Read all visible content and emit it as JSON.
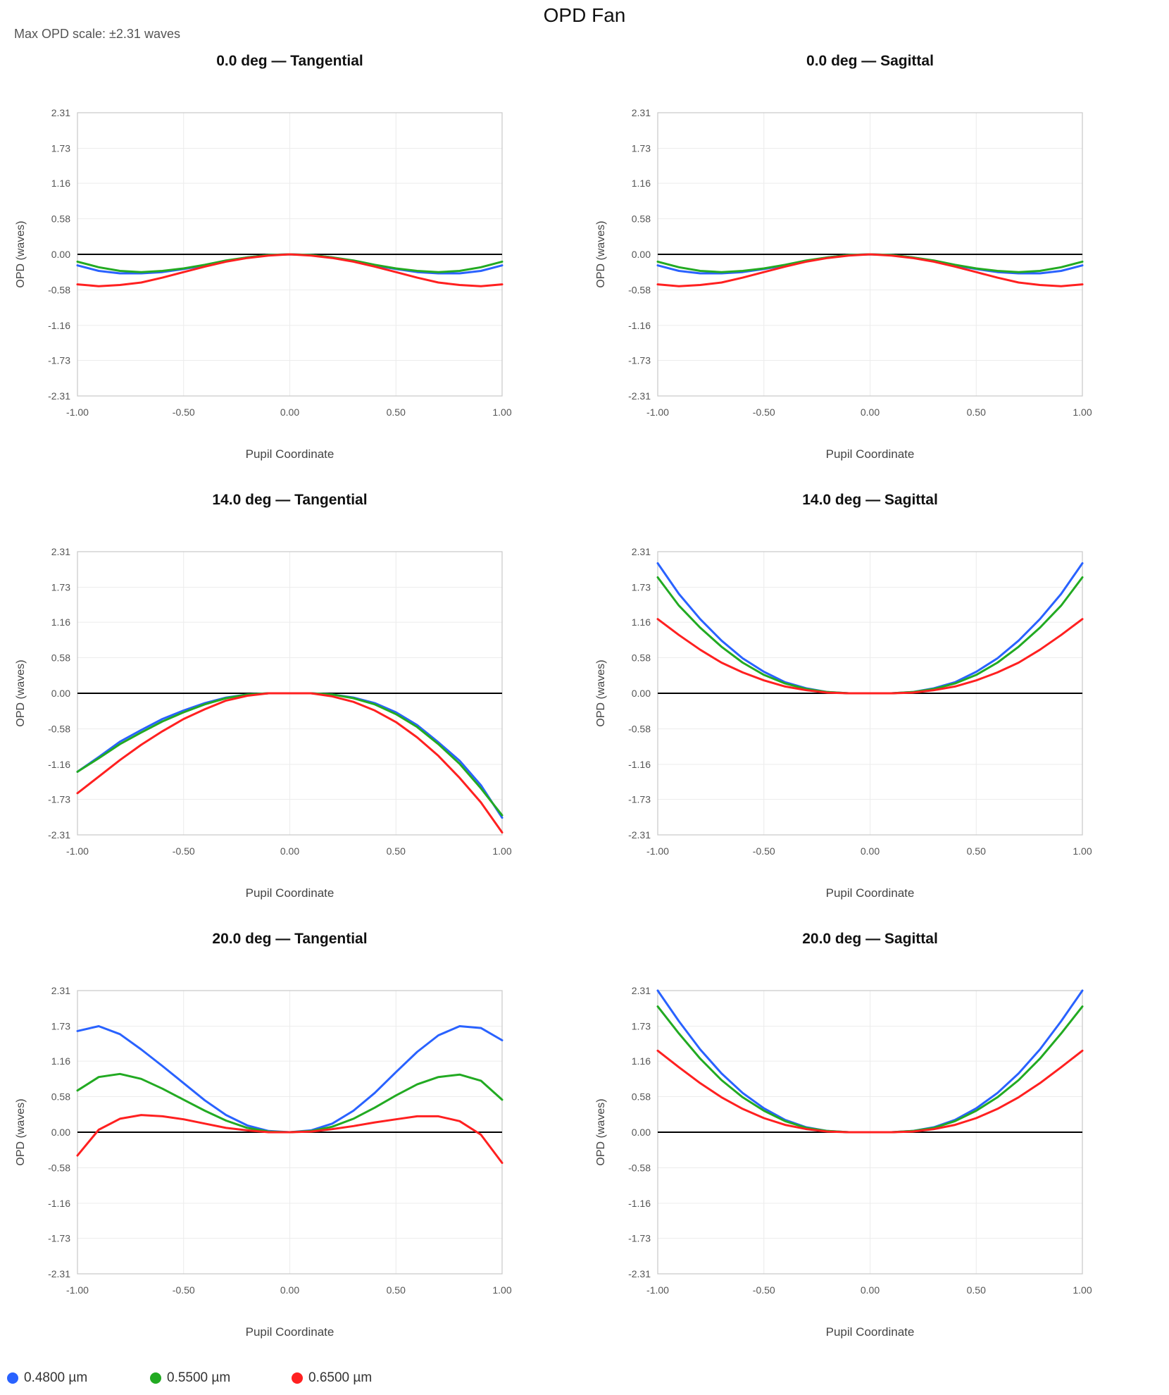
{
  "page": {
    "title": "OPD Fan",
    "scale_note": "Max OPD scale: ±2.31 waves"
  },
  "legend": [
    {
      "label": "0.4800 µm",
      "color": "#2962ff"
    },
    {
      "label": "0.5500 µm",
      "color": "#22aa22"
    },
    {
      "label": "0.6500 µm",
      "color": "#ff2020"
    }
  ],
  "axis": {
    "xlabel": "Pupil Coordinate",
    "ylabel": "OPD (waves)",
    "x_ticks": [
      "-1.00",
      "-0.50",
      "0.00",
      "0.50",
      "1.00"
    ],
    "y_ticks": [
      "2.31",
      "1.73",
      "1.16",
      "0.58",
      "0.00",
      "-0.58",
      "-1.16",
      "-1.73",
      "-2.31"
    ],
    "xlim": [
      -1,
      1
    ],
    "ylim": [
      -2.31,
      2.31
    ],
    "grid": true
  },
  "chart_data": [
    {
      "type": "line",
      "title": "0.0 deg — Tangential",
      "x": [
        -1.0,
        -0.9,
        -0.8,
        -0.7,
        -0.6,
        -0.5,
        -0.4,
        -0.3,
        -0.2,
        -0.1,
        0.0,
        0.1,
        0.2,
        0.3,
        0.4,
        0.5,
        0.6,
        0.7,
        0.8,
        0.9,
        1.0
      ],
      "series": [
        {
          "name": "0.4800 µm",
          "values": [
            -0.18,
            -0.27,
            -0.31,
            -0.31,
            -0.29,
            -0.24,
            -0.18,
            -0.11,
            -0.05,
            -0.01,
            0.0,
            -0.01,
            -0.05,
            -0.11,
            -0.18,
            -0.24,
            -0.29,
            -0.31,
            -0.31,
            -0.27,
            -0.18
          ]
        },
        {
          "name": "0.5500 µm",
          "values": [
            -0.12,
            -0.21,
            -0.27,
            -0.29,
            -0.27,
            -0.23,
            -0.17,
            -0.1,
            -0.05,
            -0.01,
            0.0,
            -0.01,
            -0.05,
            -0.1,
            -0.17,
            -0.23,
            -0.27,
            -0.29,
            -0.27,
            -0.21,
            -0.12
          ]
        },
        {
          "name": "0.6500 µm",
          "values": [
            -0.49,
            -0.52,
            -0.5,
            -0.46,
            -0.38,
            -0.29,
            -0.2,
            -0.12,
            -0.06,
            -0.02,
            0.0,
            -0.02,
            -0.06,
            -0.12,
            -0.2,
            -0.29,
            -0.38,
            -0.46,
            -0.5,
            -0.52,
            -0.49
          ]
        }
      ]
    },
    {
      "type": "line",
      "title": "0.0 deg — Sagittal",
      "x": [
        -1.0,
        -0.9,
        -0.8,
        -0.7,
        -0.6,
        -0.5,
        -0.4,
        -0.3,
        -0.2,
        -0.1,
        0.0,
        0.1,
        0.2,
        0.3,
        0.4,
        0.5,
        0.6,
        0.7,
        0.8,
        0.9,
        1.0
      ],
      "series": [
        {
          "name": "0.4800 µm",
          "values": [
            -0.18,
            -0.27,
            -0.31,
            -0.31,
            -0.29,
            -0.24,
            -0.18,
            -0.11,
            -0.05,
            -0.01,
            0.0,
            -0.01,
            -0.05,
            -0.11,
            -0.18,
            -0.24,
            -0.29,
            -0.31,
            -0.31,
            -0.27,
            -0.18
          ]
        },
        {
          "name": "0.5500 µm",
          "values": [
            -0.12,
            -0.21,
            -0.27,
            -0.29,
            -0.27,
            -0.23,
            -0.17,
            -0.1,
            -0.05,
            -0.01,
            0.0,
            -0.01,
            -0.05,
            -0.1,
            -0.17,
            -0.23,
            -0.27,
            -0.29,
            -0.27,
            -0.21,
            -0.12
          ]
        },
        {
          "name": "0.6500 µm",
          "values": [
            -0.49,
            -0.52,
            -0.5,
            -0.46,
            -0.38,
            -0.29,
            -0.2,
            -0.12,
            -0.06,
            -0.02,
            0.0,
            -0.02,
            -0.06,
            -0.12,
            -0.2,
            -0.29,
            -0.38,
            -0.46,
            -0.5,
            -0.52,
            -0.49
          ]
        }
      ]
    },
    {
      "type": "line",
      "title": "14.0 deg — Tangential",
      "x": [
        -1.0,
        -0.9,
        -0.8,
        -0.7,
        -0.6,
        -0.5,
        -0.4,
        -0.3,
        -0.2,
        -0.1,
        0.0,
        0.1,
        0.2,
        0.3,
        0.4,
        0.5,
        0.6,
        0.7,
        0.8,
        0.9,
        1.0
      ],
      "series": [
        {
          "name": "0.4800 µm",
          "values": [
            -1.28,
            -1.04,
            -0.79,
            -0.6,
            -0.42,
            -0.28,
            -0.16,
            -0.07,
            -0.02,
            0.0,
            0.0,
            0.0,
            -0.02,
            -0.07,
            -0.16,
            -0.31,
            -0.52,
            -0.8,
            -1.1,
            -1.5,
            -2.03
          ]
        },
        {
          "name": "0.5500 µm",
          "values": [
            -1.28,
            -1.06,
            -0.83,
            -0.64,
            -0.46,
            -0.31,
            -0.18,
            -0.08,
            -0.02,
            0.0,
            0.0,
            0.0,
            -0.02,
            -0.08,
            -0.18,
            -0.34,
            -0.55,
            -0.83,
            -1.15,
            -1.55,
            -1.99
          ]
        },
        {
          "name": "0.6500 µm",
          "values": [
            -1.63,
            -1.36,
            -1.09,
            -0.84,
            -0.62,
            -0.42,
            -0.26,
            -0.12,
            -0.04,
            0.0,
            0.0,
            0.0,
            -0.05,
            -0.14,
            -0.28,
            -0.47,
            -0.72,
            -1.02,
            -1.38,
            -1.78,
            -2.27
          ]
        }
      ]
    },
    {
      "type": "line",
      "title": "14.0 deg — Sagittal",
      "x": [
        -1.0,
        -0.9,
        -0.8,
        -0.7,
        -0.6,
        -0.5,
        -0.4,
        -0.3,
        -0.2,
        -0.1,
        0.0,
        0.1,
        0.2,
        0.3,
        0.4,
        0.5,
        0.6,
        0.7,
        0.8,
        0.9,
        1.0
      ],
      "series": [
        {
          "name": "0.4800 µm",
          "values": [
            2.12,
            1.62,
            1.21,
            0.86,
            0.57,
            0.35,
            0.18,
            0.08,
            0.02,
            0.0,
            0.0,
            0.0,
            0.02,
            0.08,
            0.18,
            0.35,
            0.57,
            0.86,
            1.21,
            1.62,
            2.12
          ]
        },
        {
          "name": "0.5500 µm",
          "values": [
            1.89,
            1.43,
            1.07,
            0.76,
            0.5,
            0.3,
            0.16,
            0.07,
            0.02,
            0.0,
            0.0,
            0.0,
            0.02,
            0.07,
            0.16,
            0.3,
            0.5,
            0.76,
            1.07,
            1.43,
            1.89
          ]
        },
        {
          "name": "0.6500 µm",
          "values": [
            1.21,
            0.95,
            0.71,
            0.5,
            0.34,
            0.21,
            0.11,
            0.05,
            0.01,
            0.0,
            0.0,
            0.0,
            0.01,
            0.05,
            0.11,
            0.21,
            0.34,
            0.5,
            0.71,
            0.95,
            1.21
          ]
        }
      ]
    },
    {
      "type": "line",
      "title": "20.0 deg — Tangential",
      "x": [
        -1.0,
        -0.9,
        -0.8,
        -0.7,
        -0.6,
        -0.5,
        -0.4,
        -0.3,
        -0.2,
        -0.1,
        0.0,
        0.1,
        0.2,
        0.3,
        0.4,
        0.5,
        0.6,
        0.7,
        0.8,
        0.9,
        1.0
      ],
      "series": [
        {
          "name": "0.4800 µm",
          "values": [
            1.65,
            1.73,
            1.6,
            1.35,
            1.08,
            0.8,
            0.52,
            0.28,
            0.11,
            0.02,
            0.0,
            0.03,
            0.14,
            0.35,
            0.64,
            0.98,
            1.31,
            1.58,
            1.73,
            1.7,
            1.5
          ]
        },
        {
          "name": "0.5500 µm",
          "values": [
            0.68,
            0.9,
            0.95,
            0.87,
            0.71,
            0.53,
            0.35,
            0.19,
            0.07,
            0.01,
            0.0,
            0.02,
            0.09,
            0.22,
            0.4,
            0.6,
            0.78,
            0.9,
            0.94,
            0.84,
            0.53
          ]
        },
        {
          "name": "0.6500 µm",
          "values": [
            -0.38,
            0.04,
            0.22,
            0.28,
            0.26,
            0.21,
            0.14,
            0.07,
            0.03,
            0.0,
            0.0,
            0.01,
            0.05,
            0.1,
            0.16,
            0.21,
            0.26,
            0.26,
            0.18,
            -0.04,
            -0.5
          ]
        }
      ]
    },
    {
      "type": "line",
      "title": "20.0 deg — Sagittal",
      "x": [
        -1.0,
        -0.9,
        -0.8,
        -0.7,
        -0.6,
        -0.5,
        -0.4,
        -0.3,
        -0.2,
        -0.1,
        0.0,
        0.1,
        0.2,
        0.3,
        0.4,
        0.5,
        0.6,
        0.7,
        0.8,
        0.9,
        1.0
      ],
      "series": [
        {
          "name": "0.4800 µm",
          "values": [
            2.31,
            1.81,
            1.35,
            0.96,
            0.64,
            0.39,
            0.2,
            0.08,
            0.02,
            0.0,
            0.0,
            0.0,
            0.02,
            0.08,
            0.2,
            0.39,
            0.64,
            0.96,
            1.35,
            1.81,
            2.31
          ]
        },
        {
          "name": "0.5500 µm",
          "values": [
            2.05,
            1.61,
            1.2,
            0.85,
            0.57,
            0.35,
            0.18,
            0.07,
            0.02,
            0.0,
            0.0,
            0.0,
            0.02,
            0.07,
            0.18,
            0.35,
            0.57,
            0.85,
            1.2,
            1.61,
            2.05
          ]
        },
        {
          "name": "0.6500 µm",
          "values": [
            1.33,
            1.06,
            0.8,
            0.57,
            0.38,
            0.23,
            0.12,
            0.05,
            0.01,
            0.0,
            0.0,
            0.0,
            0.01,
            0.05,
            0.12,
            0.23,
            0.38,
            0.57,
            0.8,
            1.06,
            1.33
          ]
        }
      ]
    }
  ]
}
